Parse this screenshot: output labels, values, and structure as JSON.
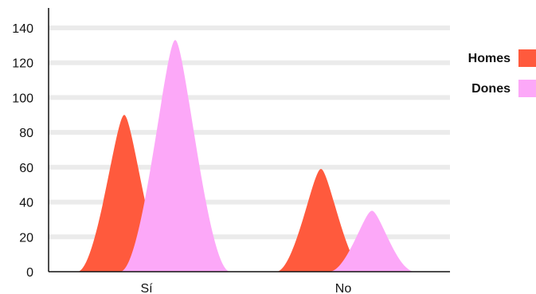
{
  "chart_data": {
    "type": "area",
    "categories": [
      "Sí",
      "No"
    ],
    "series": [
      {
        "name": "Homes",
        "values": [
          90,
          59
        ],
        "color": "#ff5a3d"
      },
      {
        "name": "Dones",
        "values": [
          133,
          35
        ],
        "color": "#fca8f8"
      }
    ],
    "ylim": [
      0,
      140
    ],
    "yticks": [
      0,
      20,
      40,
      60,
      80,
      100,
      120,
      140
    ],
    "grid": true,
    "legend_position": "right",
    "legend": [
      {
        "label": "Homes",
        "color": "#ff5a3d"
      },
      {
        "label": "Dones",
        "color": "#fca8f8"
      }
    ],
    "grid_color": "#ebebeb",
    "axis_color": "#111111"
  }
}
